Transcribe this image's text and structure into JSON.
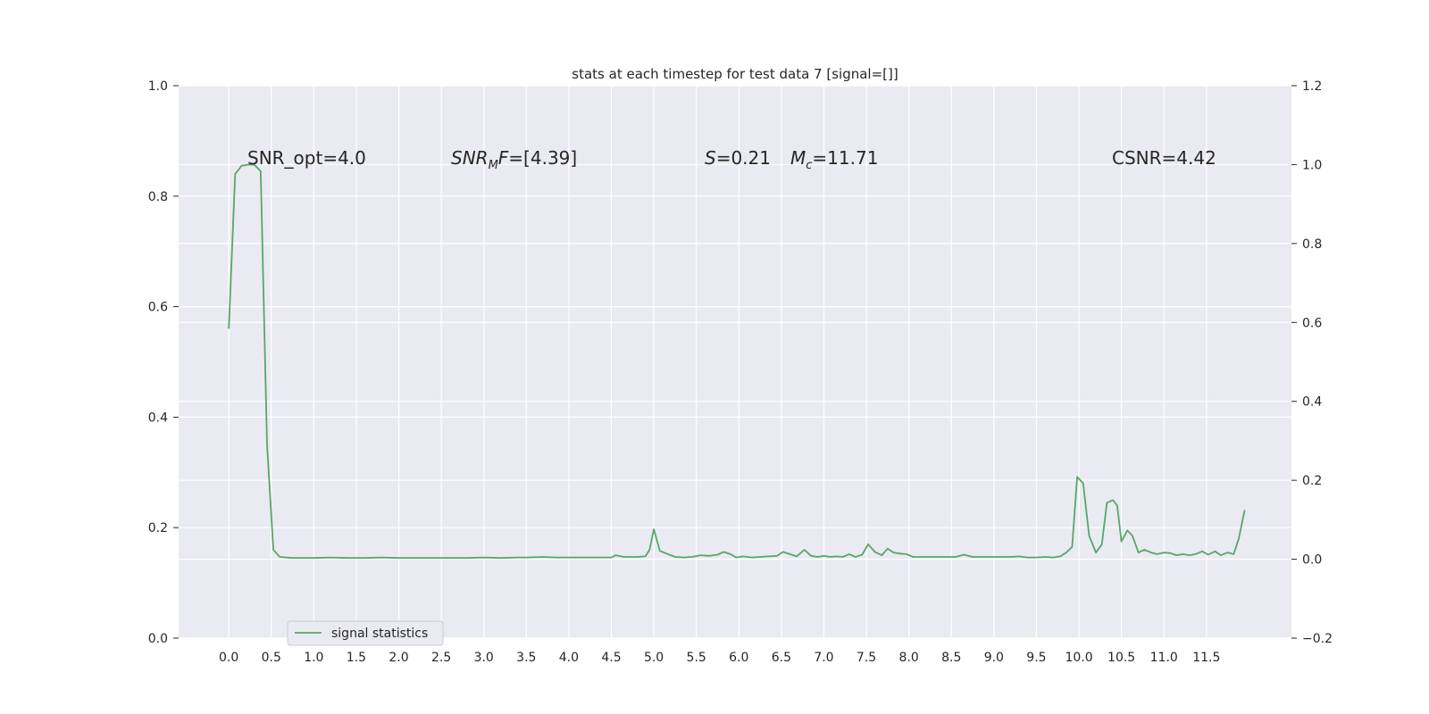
{
  "chart_data": {
    "type": "line",
    "title": "stats at each timestep for test data 7 [signal=[]]",
    "xlabel": "",
    "ylabel": "",
    "xlim": [
      -0.59,
      12.5
    ],
    "ylim": [
      0.0,
      1.0
    ],
    "y2lim": [
      -0.2,
      1.2
    ],
    "grid": true,
    "legend_position": "lower-left",
    "x_ticks": [
      "0.0",
      "0.5",
      "1.0",
      "1.5",
      "2.0",
      "2.5",
      "3.0",
      "3.5",
      "4.0",
      "4.5",
      "5.0",
      "5.5",
      "6.0",
      "6.5",
      "7.0",
      "7.5",
      "8.0",
      "8.5",
      "9.0",
      "9.5",
      "10.0",
      "10.5",
      "11.0",
      "11.5"
    ],
    "y_ticks": [
      "0.0",
      "0.2",
      "0.4",
      "0.6",
      "0.8",
      "1.0"
    ],
    "y2_ticks": [
      "−0.2",
      "0.0",
      "0.2",
      "0.4",
      "0.6",
      "0.8",
      "1.0",
      "1.2"
    ],
    "annotations": {
      "snr_opt": "SNR_opt=4.0",
      "snr_mf_main": "SNR",
      "snr_mf_sub": "M",
      "snr_mf_tail": "F=[4.39]",
      "s_sym": "S",
      "s_val": "=0.21",
      "mc_main": "M",
      "mc_sub": "c",
      "mc_val": "=11.71",
      "csnr": "CSNR=4.42"
    },
    "series": [
      {
        "name": "signal statistics",
        "color": "#55a868",
        "x": [
          0.0,
          0.075,
          0.15,
          0.225,
          0.3,
          0.375,
          0.45,
          0.525,
          0.6,
          0.75,
          0.9,
          1.0,
          1.2,
          1.4,
          1.6,
          1.8,
          2.0,
          2.2,
          2.4,
          2.6,
          2.8,
          3.0,
          3.2,
          3.4,
          3.5,
          3.7,
          3.85,
          4.0,
          4.2,
          4.4,
          4.5,
          4.55,
          4.65,
          4.8,
          4.9,
          4.95,
          5.0,
          5.07,
          5.15,
          5.25,
          5.35,
          5.45,
          5.55,
          5.65,
          5.75,
          5.82,
          5.9,
          5.97,
          6.05,
          6.15,
          6.25,
          6.35,
          6.45,
          6.52,
          6.6,
          6.68,
          6.77,
          6.85,
          6.93,
          7.0,
          7.07,
          7.15,
          7.22,
          7.3,
          7.37,
          7.45,
          7.52,
          7.6,
          7.68,
          7.75,
          7.82,
          7.9,
          7.97,
          8.05,
          8.15,
          8.3,
          8.45,
          8.55,
          8.65,
          8.75,
          8.9,
          9.0,
          9.1,
          9.2,
          9.3,
          9.4,
          9.5,
          9.6,
          9.7,
          9.78,
          9.85,
          9.92,
          9.98,
          10.05,
          10.12,
          10.2,
          10.27,
          10.33,
          10.4,
          10.45,
          10.5,
          10.57,
          10.63,
          10.7,
          10.77,
          10.85,
          10.92,
          11.0,
          11.07,
          11.15,
          11.22,
          11.3,
          11.37,
          11.45,
          11.52,
          11.6,
          11.67,
          11.75,
          11.82,
          11.88,
          11.95
        ],
        "y": [
          0.56,
          0.84,
          0.855,
          0.857,
          0.857,
          0.845,
          0.35,
          0.16,
          0.147,
          0.145,
          0.145,
          0.145,
          0.146,
          0.145,
          0.145,
          0.146,
          0.145,
          0.145,
          0.145,
          0.145,
          0.145,
          0.146,
          0.145,
          0.146,
          0.146,
          0.147,
          0.146,
          0.146,
          0.146,
          0.146,
          0.146,
          0.15,
          0.147,
          0.147,
          0.148,
          0.16,
          0.197,
          0.158,
          0.153,
          0.147,
          0.146,
          0.147,
          0.15,
          0.149,
          0.151,
          0.156,
          0.152,
          0.146,
          0.148,
          0.146,
          0.147,
          0.148,
          0.149,
          0.156,
          0.152,
          0.148,
          0.16,
          0.149,
          0.147,
          0.149,
          0.147,
          0.148,
          0.147,
          0.152,
          0.147,
          0.151,
          0.17,
          0.156,
          0.15,
          0.162,
          0.155,
          0.153,
          0.152,
          0.147,
          0.147,
          0.147,
          0.147,
          0.147,
          0.151,
          0.147,
          0.147,
          0.147,
          0.147,
          0.147,
          0.148,
          0.146,
          0.146,
          0.147,
          0.146,
          0.148,
          0.155,
          0.165,
          0.292,
          0.28,
          0.185,
          0.155,
          0.17,
          0.245,
          0.25,
          0.24,
          0.175,
          0.195,
          0.185,
          0.155,
          0.16,
          0.155,
          0.152,
          0.155,
          0.154,
          0.15,
          0.152,
          0.15,
          0.152,
          0.157,
          0.151,
          0.157,
          0.15,
          0.155,
          0.152,
          0.18,
          0.232
        ]
      }
    ]
  }
}
